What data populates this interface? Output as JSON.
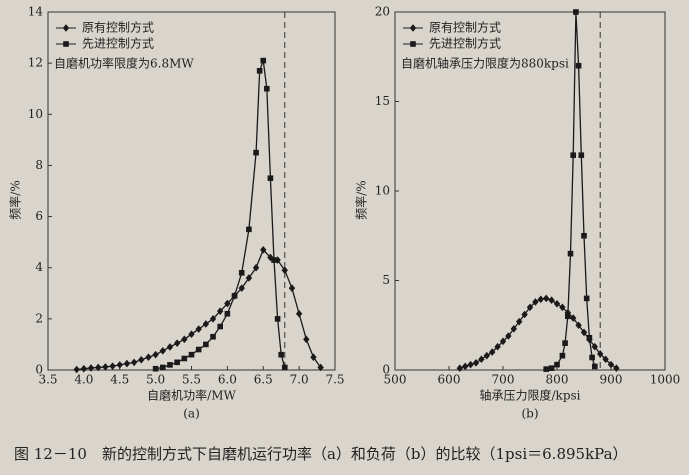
{
  "caption": "图 12－10　新的控制方式下自磨机运行功率（a）和负荷（b）的比较（1psi＝6.895kPa）",
  "chart_data": [
    {
      "type": "line",
      "xlabel": "自磨机功率/MW",
      "ylabel": "频率/%",
      "panel_label": "(a)",
      "annotation": "自磨机功率限度为6.8MW",
      "limit_line": 6.8,
      "xlim": [
        3.5,
        7.5
      ],
      "ylim": [
        0,
        14
      ],
      "xticks": [
        3.5,
        {
          "value": 4,
          "label": "4.0"
        },
        4.5,
        {
          "value": 5,
          "label": "5.0"
        },
        5.5,
        {
          "value": 6,
          "label": "6.0"
        },
        6.5,
        {
          "value": 7,
          "label": "7.0"
        },
        7.5
      ],
      "yticks": [
        0,
        2,
        4,
        6,
        8,
        10,
        12,
        14
      ],
      "series": [
        {
          "name": "原有控制方式",
          "color": "#1a1a1a",
          "marker": "diamond",
          "x": [
            3.9,
            4.0,
            4.1,
            4.2,
            4.3,
            4.4,
            4.5,
            4.6,
            4.7,
            4.8,
            4.9,
            5.0,
            5.1,
            5.2,
            5.3,
            5.4,
            5.5,
            5.6,
            5.7,
            5.8,
            5.9,
            6.0,
            6.1,
            6.2,
            6.3,
            6.4,
            6.5,
            6.6,
            6.7,
            6.8,
            6.9,
            7.0,
            7.1,
            7.2,
            7.3
          ],
          "values": [
            0.02,
            0.05,
            0.08,
            0.1,
            0.12,
            0.15,
            0.2,
            0.25,
            0.3,
            0.4,
            0.5,
            0.6,
            0.75,
            0.9,
            1.05,
            1.2,
            1.4,
            1.6,
            1.8,
            2.0,
            2.3,
            2.6,
            2.9,
            3.2,
            3.6,
            4.0,
            4.7,
            4.4,
            4.3,
            3.9,
            3.2,
            2.2,
            1.2,
            0.5,
            0.1
          ]
        },
        {
          "name": "先进控制方式",
          "color": "#1a1a1a",
          "marker": "square",
          "x": [
            5.0,
            5.1,
            5.2,
            5.3,
            5.4,
            5.5,
            5.6,
            5.7,
            5.8,
            5.9,
            6.0,
            6.1,
            6.2,
            6.3,
            6.4,
            6.45,
            6.5,
            6.55,
            6.6,
            6.65,
            6.7,
            6.75,
            6.8
          ],
          "values": [
            0.05,
            0.1,
            0.2,
            0.3,
            0.45,
            0.6,
            0.8,
            1.0,
            1.3,
            1.7,
            2.2,
            2.9,
            3.8,
            5.5,
            8.5,
            11.7,
            12.1,
            11.0,
            7.5,
            4.3,
            2.0,
            0.6,
            0.1
          ]
        }
      ]
    },
    {
      "type": "line",
      "xlabel": "轴承压力限度/kpsi",
      "ylabel": "频率/%",
      "panel_label": "(b)",
      "annotation": "自磨机轴承压力限度为880kpsi",
      "limit_line": 880,
      "xlim": [
        500,
        1000
      ],
      "ylim": [
        0,
        20
      ],
      "xticks": [
        500,
        600,
        700,
        800,
        900,
        1000
      ],
      "yticks": [
        0,
        5,
        10,
        15,
        20
      ],
      "series": [
        {
          "name": "原有控制方式",
          "color": "#1a1a1a",
          "marker": "diamond",
          "x": [
            620,
            630,
            640,
            650,
            660,
            670,
            680,
            690,
            700,
            710,
            720,
            730,
            740,
            750,
            760,
            770,
            780,
            790,
            800,
            810,
            820,
            830,
            840,
            850,
            860,
            870,
            880,
            890,
            900,
            910
          ],
          "values": [
            0.1,
            0.2,
            0.3,
            0.4,
            0.6,
            0.8,
            1.0,
            1.3,
            1.6,
            1.9,
            2.3,
            2.7,
            3.1,
            3.5,
            3.8,
            3.95,
            4.0,
            3.9,
            3.7,
            3.5,
            3.2,
            2.9,
            2.5,
            2.1,
            1.7,
            1.3,
            0.9,
            0.6,
            0.3,
            0.1
          ]
        },
        {
          "name": "先进控制方式",
          "color": "#1a1a1a",
          "marker": "square",
          "x": [
            780,
            790,
            800,
            810,
            815,
            820,
            825,
            830,
            835,
            840,
            845,
            850,
            855,
            860,
            865,
            870
          ],
          "values": [
            0.05,
            0.1,
            0.3,
            0.8,
            1.5,
            3.0,
            6.5,
            12,
            20,
            17,
            12,
            7.5,
            4,
            1.8,
            0.7,
            0.2
          ]
        }
      ]
    }
  ]
}
